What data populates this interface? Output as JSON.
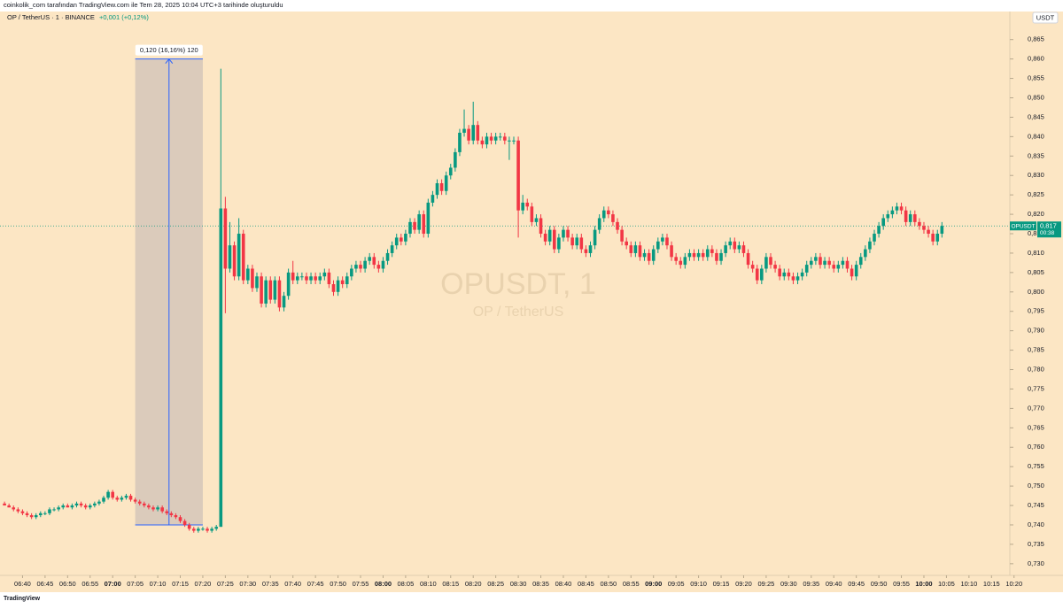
{
  "header": "coinkolik_com tarafından TradingView.com ile Tem 28, 2025 10:04 UTC+3 tarihinde oluşturuldu",
  "brand": "TradingView",
  "chart_data": {
    "type": "candlestick",
    "title": "OP / TetherUS · 1 · BINANCE",
    "change": "+0,001 (+0,12%)",
    "watermark": "OPUSDT, 1",
    "watermark_sub": "OP / TetherUS",
    "currency": "USDT",
    "up_color": "#089981",
    "down_color": "#f23645",
    "last_price": {
      "symbol": "OPUSDT",
      "value": 0.817,
      "label": "0,817",
      "countdown": "00:38"
    },
    "measure": {
      "x": [
        "07:05",
        "07:20"
      ],
      "y": [
        0.74,
        0.86
      ],
      "label": "0,120 (16,16%) 120"
    },
    "xlim": [
      "06:35",
      "10:23"
    ],
    "ylim": [
      0.727,
      0.872
    ],
    "xticks": [
      "06:40",
      "06:45",
      "06:50",
      "06:55",
      "07:00",
      "07:05",
      "07:10",
      "07:15",
      "07:20",
      "07:25",
      "07:30",
      "07:35",
      "07:40",
      "07:45",
      "07:50",
      "07:55",
      "08:00",
      "08:05",
      "08:10",
      "08:15",
      "08:20",
      "08:25",
      "08:30",
      "08:35",
      "08:40",
      "08:45",
      "08:50",
      "08:55",
      "09:00",
      "09:05",
      "09:10",
      "09:15",
      "09:20",
      "09:25",
      "09:30",
      "09:35",
      "09:40",
      "09:45",
      "09:50",
      "09:55",
      "10:00",
      "10:05",
      "10:10",
      "10:15",
      "10:20"
    ],
    "yticks": [
      {
        "value": 0.73,
        "label": "0,730"
      },
      {
        "value": 0.735,
        "label": "0,735"
      },
      {
        "value": 0.74,
        "label": "0,740"
      },
      {
        "value": 0.745,
        "label": "0,745"
      },
      {
        "value": 0.75,
        "label": "0,750"
      },
      {
        "value": 0.755,
        "label": "0,755"
      },
      {
        "value": 0.76,
        "label": "0,760"
      },
      {
        "value": 0.765,
        "label": "0,765"
      },
      {
        "value": 0.77,
        "label": "0,770"
      },
      {
        "value": 0.775,
        "label": "0,775"
      },
      {
        "value": 0.78,
        "label": "0,780"
      },
      {
        "value": 0.785,
        "label": "0,785"
      },
      {
        "value": 0.79,
        "label": "0,790"
      },
      {
        "value": 0.795,
        "label": "0,795"
      },
      {
        "value": 0.8,
        "label": "0,800"
      },
      {
        "value": 0.805,
        "label": "0,805"
      },
      {
        "value": 0.81,
        "label": "0,810"
      },
      {
        "value": 0.815,
        "label": "0,815"
      },
      {
        "value": 0.82,
        "label": "0,820"
      },
      {
        "value": 0.825,
        "label": "0,825"
      },
      {
        "value": 0.83,
        "label": "0,830"
      },
      {
        "value": 0.835,
        "label": "0,835"
      },
      {
        "value": 0.84,
        "label": "0,840"
      },
      {
        "value": 0.845,
        "label": "0,845"
      },
      {
        "value": 0.85,
        "label": "0,850"
      },
      {
        "value": 0.855,
        "label": "0,855"
      },
      {
        "value": 0.86,
        "label": "0,860"
      },
      {
        "value": 0.865,
        "label": "0,865"
      }
    ],
    "x": [
      "06:36",
      "06:37",
      "06:38",
      "06:39",
      "06:40",
      "06:41",
      "06:42",
      "06:43",
      "06:44",
      "06:45",
      "06:46",
      "06:47",
      "06:48",
      "06:49",
      "06:50",
      "06:51",
      "06:52",
      "06:53",
      "06:54",
      "06:55",
      "06:56",
      "06:57",
      "06:58",
      "06:59",
      "07:00",
      "07:01",
      "07:02",
      "07:03",
      "07:04",
      "07:05",
      "07:06",
      "07:07",
      "07:08",
      "07:09",
      "07:10",
      "07:11",
      "07:12",
      "07:13",
      "07:14",
      "07:15",
      "07:16",
      "07:17",
      "07:18",
      "07:19",
      "07:20",
      "07:21",
      "07:22",
      "07:23",
      "07:24",
      "07:25",
      "07:26",
      "07:27",
      "07:28",
      "07:29",
      "07:30",
      "07:31",
      "07:32",
      "07:33",
      "07:34",
      "07:35",
      "07:36",
      "07:37",
      "07:38",
      "07:39",
      "07:40",
      "07:41",
      "07:42",
      "07:43",
      "07:44",
      "07:45",
      "07:46",
      "07:47",
      "07:48",
      "07:49",
      "07:50",
      "07:51",
      "07:52",
      "07:53",
      "07:54",
      "07:55",
      "07:56",
      "07:57",
      "07:58",
      "07:59",
      "08:00",
      "08:01",
      "08:02",
      "08:03",
      "08:04",
      "08:05",
      "08:06",
      "08:07",
      "08:08",
      "08:09",
      "08:10",
      "08:11",
      "08:12",
      "08:13",
      "08:14",
      "08:15",
      "08:16",
      "08:17",
      "08:18",
      "08:19",
      "08:20",
      "08:21",
      "08:22",
      "08:23",
      "08:24",
      "08:25",
      "08:26",
      "08:27",
      "08:28",
      "08:29",
      "08:30",
      "08:31",
      "08:32",
      "08:33",
      "08:34",
      "08:35",
      "08:36",
      "08:37",
      "08:38",
      "08:39",
      "08:40",
      "08:41",
      "08:42",
      "08:43",
      "08:44",
      "08:45",
      "08:46",
      "08:47",
      "08:48",
      "08:49",
      "08:50",
      "08:51",
      "08:52",
      "08:53",
      "08:54",
      "08:55",
      "08:56",
      "08:57",
      "08:58",
      "08:59",
      "09:00",
      "09:01",
      "09:02",
      "09:03",
      "09:04",
      "09:05",
      "09:06",
      "09:07",
      "09:08",
      "09:09",
      "09:10",
      "09:11",
      "09:12",
      "09:13",
      "09:14",
      "09:15",
      "09:16",
      "09:17",
      "09:18",
      "09:19",
      "09:20",
      "09:21",
      "09:22",
      "09:23",
      "09:24",
      "09:25",
      "09:26",
      "09:27",
      "09:28",
      "09:29",
      "09:30",
      "09:31",
      "09:32",
      "09:33",
      "09:34",
      "09:35",
      "09:36",
      "09:37",
      "09:38",
      "09:39",
      "09:40",
      "09:41",
      "09:42",
      "09:43",
      "09:44",
      "09:45",
      "09:46",
      "09:47",
      "09:48",
      "09:49",
      "09:50",
      "09:51",
      "09:52",
      "09:53",
      "09:54",
      "09:55",
      "09:56",
      "09:57",
      "09:58",
      "09:59",
      "10:00",
      "10:01",
      "10:02",
      "10:03",
      "10:04"
    ],
    "open": [
      0.7455,
      0.745,
      0.7445,
      0.744,
      0.7435,
      0.743,
      0.7425,
      0.742,
      0.7425,
      0.743,
      0.743,
      0.744,
      0.744,
      0.7445,
      0.745,
      0.7445,
      0.745,
      0.7455,
      0.745,
      0.7445,
      0.745,
      0.7455,
      0.746,
      0.747,
      0.7485,
      0.747,
      0.7465,
      0.747,
      0.7475,
      0.7465,
      0.746,
      0.7455,
      0.745,
      0.7445,
      0.744,
      0.7445,
      0.7435,
      0.743,
      0.7425,
      0.742,
      0.741,
      0.74,
      0.739,
      0.7385,
      0.739,
      0.739,
      0.7385,
      0.739,
      0.7395,
      0.8215,
      0.806,
      0.812,
      0.804,
      0.815,
      0.803,
      0.806,
      0.801,
      0.804,
      0.797,
      0.803,
      0.798,
      0.803,
      0.796,
      0.799,
      0.805,
      0.803,
      0.804,
      0.804,
      0.803,
      0.804,
      0.803,
      0.804,
      0.805,
      0.802,
      0.8,
      0.803,
      0.802,
      0.804,
      0.806,
      0.807,
      0.806,
      0.808,
      0.809,
      0.807,
      0.806,
      0.808,
      0.81,
      0.812,
      0.814,
      0.813,
      0.815,
      0.818,
      0.816,
      0.82,
      0.815,
      0.823,
      0.825,
      0.828,
      0.826,
      0.83,
      0.832,
      0.836,
      0.841,
      0.842,
      0.839,
      0.843,
      0.839,
      0.838,
      0.84,
      0.839,
      0.84,
      0.84,
      0.839,
      0.839,
      0.839,
      0.821,
      0.823,
      0.822,
      0.818,
      0.819,
      0.815,
      0.813,
      0.816,
      0.811,
      0.814,
      0.816,
      0.814,
      0.812,
      0.814,
      0.811,
      0.81,
      0.812,
      0.816,
      0.819,
      0.821,
      0.82,
      0.818,
      0.816,
      0.813,
      0.812,
      0.81,
      0.812,
      0.809,
      0.81,
      0.808,
      0.811,
      0.813,
      0.814,
      0.812,
      0.809,
      0.808,
      0.807,
      0.809,
      0.81,
      0.809,
      0.81,
      0.809,
      0.811,
      0.81,
      0.808,
      0.81,
      0.812,
      0.813,
      0.811,
      0.812,
      0.81,
      0.807,
      0.806,
      0.803,
      0.806,
      0.809,
      0.807,
      0.806,
      0.804,
      0.805,
      0.804,
      0.803,
      0.804,
      0.805,
      0.807,
      0.808,
      0.809,
      0.807,
      0.808,
      0.807,
      0.806,
      0.807,
      0.808,
      0.806,
      0.804,
      0.807,
      0.809,
      0.811,
      0.813,
      0.815,
      0.817,
      0.819,
      0.82,
      0.821,
      0.822,
      0.821,
      0.818,
      0.82,
      0.818,
      0.817,
      0.816,
      0.815,
      0.813,
      0.815
    ],
    "high": [
      0.746,
      0.7455,
      0.745,
      0.7445,
      0.744,
      0.7435,
      0.743,
      0.743,
      0.7435,
      0.7435,
      0.7445,
      0.7445,
      0.745,
      0.7455,
      0.7455,
      0.7455,
      0.746,
      0.746,
      0.7455,
      0.7455,
      0.746,
      0.7465,
      0.7475,
      0.749,
      0.749,
      0.7475,
      0.7475,
      0.748,
      0.748,
      0.747,
      0.7465,
      0.746,
      0.7455,
      0.745,
      0.745,
      0.745,
      0.744,
      0.7435,
      0.743,
      0.7425,
      0.7415,
      0.7405,
      0.7395,
      0.7395,
      0.7395,
      0.7395,
      0.7395,
      0.74,
      0.8575,
      0.8245,
      0.818,
      0.813,
      0.819,
      0.816,
      0.807,
      0.807,
      0.805,
      0.805,
      0.804,
      0.804,
      0.804,
      0.804,
      0.8,
      0.806,
      0.808,
      0.805,
      0.805,
      0.805,
      0.805,
      0.805,
      0.805,
      0.806,
      0.806,
      0.803,
      0.804,
      0.804,
      0.805,
      0.807,
      0.808,
      0.808,
      0.809,
      0.81,
      0.81,
      0.808,
      0.809,
      0.811,
      0.813,
      0.815,
      0.815,
      0.816,
      0.819,
      0.819,
      0.821,
      0.821,
      0.824,
      0.826,
      0.829,
      0.829,
      0.831,
      0.833,
      0.837,
      0.842,
      0.847,
      0.843,
      0.849,
      0.844,
      0.84,
      0.841,
      0.841,
      0.841,
      0.841,
      0.841,
      0.84,
      0.84,
      0.84,
      0.825,
      0.824,
      0.823,
      0.82,
      0.82,
      0.816,
      0.817,
      0.817,
      0.815,
      0.817,
      0.817,
      0.815,
      0.815,
      0.815,
      0.812,
      0.813,
      0.817,
      0.82,
      0.822,
      0.822,
      0.821,
      0.819,
      0.817,
      0.814,
      0.813,
      0.813,
      0.813,
      0.811,
      0.811,
      0.812,
      0.814,
      0.815,
      0.815,
      0.813,
      0.81,
      0.809,
      0.81,
      0.811,
      0.811,
      0.811,
      0.811,
      0.812,
      0.812,
      0.811,
      0.811,
      0.813,
      0.814,
      0.814,
      0.813,
      0.813,
      0.811,
      0.808,
      0.807,
      0.807,
      0.81,
      0.81,
      0.808,
      0.807,
      0.806,
      0.806,
      0.805,
      0.805,
      0.806,
      0.808,
      0.809,
      0.81,
      0.81,
      0.809,
      0.809,
      0.808,
      0.808,
      0.809,
      0.809,
      0.807,
      0.808,
      0.81,
      0.812,
      0.814,
      0.816,
      0.818,
      0.82,
      0.821,
      0.822,
      0.823,
      0.823,
      0.822,
      0.821,
      0.821,
      0.819,
      0.818,
      0.817,
      0.816,
      0.816,
      0.818
    ],
    "low": [
      0.745,
      0.7445,
      0.7435,
      0.743,
      0.7425,
      0.742,
      0.7415,
      0.7415,
      0.742,
      0.7425,
      0.7425,
      0.7435,
      0.7435,
      0.744,
      0.7445,
      0.744,
      0.7445,
      0.7445,
      0.744,
      0.744,
      0.7445,
      0.745,
      0.7455,
      0.7465,
      0.7465,
      0.746,
      0.746,
      0.7465,
      0.746,
      0.7455,
      0.745,
      0.7445,
      0.744,
      0.7435,
      0.7435,
      0.743,
      0.7425,
      0.742,
      0.7415,
      0.7405,
      0.7395,
      0.7385,
      0.738,
      0.738,
      0.7385,
      0.738,
      0.738,
      0.7385,
      0.7395,
      0.7945,
      0.805,
      0.803,
      0.803,
      0.802,
      0.802,
      0.8,
      0.8,
      0.796,
      0.796,
      0.797,
      0.797,
      0.795,
      0.795,
      0.798,
      0.802,
      0.802,
      0.803,
      0.802,
      0.802,
      0.802,
      0.802,
      0.803,
      0.801,
      0.799,
      0.799,
      0.801,
      0.801,
      0.803,
      0.805,
      0.805,
      0.805,
      0.807,
      0.806,
      0.805,
      0.805,
      0.807,
      0.809,
      0.811,
      0.812,
      0.812,
      0.814,
      0.815,
      0.815,
      0.814,
      0.814,
      0.822,
      0.824,
      0.825,
      0.825,
      0.829,
      0.831,
      0.835,
      0.84,
      0.838,
      0.838,
      0.838,
      0.837,
      0.837,
      0.838,
      0.838,
      0.839,
      0.838,
      0.834,
      0.838,
      0.814,
      0.82,
      0.821,
      0.817,
      0.817,
      0.814,
      0.812,
      0.812,
      0.81,
      0.81,
      0.813,
      0.813,
      0.811,
      0.811,
      0.81,
      0.809,
      0.809,
      0.811,
      0.815,
      0.818,
      0.819,
      0.817,
      0.815,
      0.812,
      0.811,
      0.809,
      0.809,
      0.808,
      0.808,
      0.807,
      0.807,
      0.81,
      0.812,
      0.811,
      0.808,
      0.807,
      0.806,
      0.806,
      0.808,
      0.808,
      0.808,
      0.808,
      0.808,
      0.809,
      0.807,
      0.807,
      0.809,
      0.811,
      0.81,
      0.81,
      0.809,
      0.806,
      0.805,
      0.802,
      0.802,
      0.805,
      0.806,
      0.805,
      0.803,
      0.803,
      0.803,
      0.802,
      0.802,
      0.803,
      0.804,
      0.806,
      0.807,
      0.806,
      0.806,
      0.806,
      0.805,
      0.805,
      0.806,
      0.805,
      0.803,
      0.803,
      0.806,
      0.808,
      0.81,
      0.812,
      0.814,
      0.816,
      0.818,
      0.819,
      0.82,
      0.82,
      0.817,
      0.817,
      0.817,
      0.816,
      0.815,
      0.814,
      0.812,
      0.812,
      0.814
    ],
    "close": [
      0.745,
      0.7445,
      0.744,
      0.7435,
      0.743,
      0.7425,
      0.742,
      0.7425,
      0.743,
      0.743,
      0.744,
      0.744,
      0.7445,
      0.745,
      0.7445,
      0.745,
      0.7455,
      0.745,
      0.7445,
      0.745,
      0.7455,
      0.746,
      0.747,
      0.7485,
      0.747,
      0.7465,
      0.747,
      0.7475,
      0.7465,
      0.746,
      0.7455,
      0.745,
      0.7445,
      0.744,
      0.7445,
      0.7435,
      0.743,
      0.7425,
      0.742,
      0.741,
      0.74,
      0.739,
      0.7385,
      0.739,
      0.739,
      0.7385,
      0.739,
      0.7395,
      0.8215,
      0.806,
      0.812,
      0.804,
      0.815,
      0.803,
      0.806,
      0.801,
      0.804,
      0.797,
      0.803,
      0.798,
      0.803,
      0.796,
      0.799,
      0.805,
      0.803,
      0.804,
      0.804,
      0.803,
      0.804,
      0.803,
      0.804,
      0.805,
      0.802,
      0.8,
      0.803,
      0.802,
      0.804,
      0.806,
      0.807,
      0.806,
      0.808,
      0.809,
      0.807,
      0.806,
      0.808,
      0.81,
      0.812,
      0.814,
      0.813,
      0.815,
      0.818,
      0.816,
      0.82,
      0.815,
      0.823,
      0.825,
      0.828,
      0.826,
      0.83,
      0.832,
      0.836,
      0.841,
      0.842,
      0.839,
      0.843,
      0.839,
      0.838,
      0.84,
      0.839,
      0.84,
      0.84,
      0.839,
      0.839,
      0.839,
      0.821,
      0.823,
      0.822,
      0.818,
      0.819,
      0.815,
      0.813,
      0.816,
      0.811,
      0.814,
      0.816,
      0.814,
      0.812,
      0.814,
      0.811,
      0.81,
      0.812,
      0.816,
      0.819,
      0.821,
      0.82,
      0.818,
      0.816,
      0.813,
      0.812,
      0.81,
      0.812,
      0.809,
      0.81,
      0.808,
      0.811,
      0.813,
      0.814,
      0.812,
      0.809,
      0.808,
      0.807,
      0.809,
      0.81,
      0.809,
      0.81,
      0.809,
      0.811,
      0.81,
      0.808,
      0.81,
      0.812,
      0.813,
      0.811,
      0.812,
      0.81,
      0.807,
      0.806,
      0.803,
      0.806,
      0.809,
      0.807,
      0.806,
      0.804,
      0.805,
      0.804,
      0.803,
      0.804,
      0.805,
      0.807,
      0.808,
      0.809,
      0.807,
      0.808,
      0.807,
      0.806,
      0.807,
      0.808,
      0.806,
      0.804,
      0.807,
      0.809,
      0.811,
      0.813,
      0.815,
      0.817,
      0.819,
      0.82,
      0.821,
      0.822,
      0.821,
      0.818,
      0.82,
      0.818,
      0.817,
      0.816,
      0.815,
      0.813,
      0.815,
      0.817
    ]
  }
}
